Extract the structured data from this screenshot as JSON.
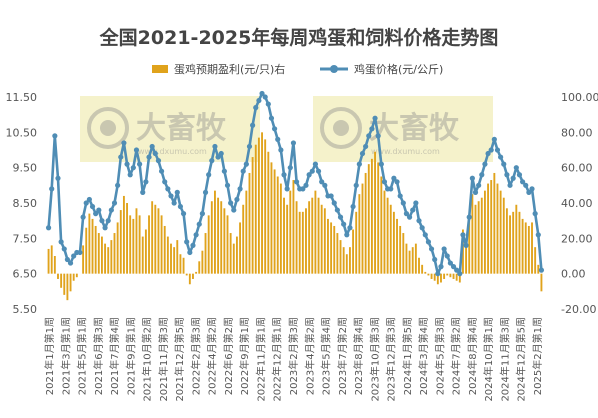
{
  "chart_data": {
    "type": "bar+line",
    "title": "全国2021-2025年每周鸡蛋和饲料价格走势图",
    "legend": {
      "placement": "top",
      "items": [
        {
          "label": "蛋鸡预期盈利(元/只)右",
          "marker": "bar"
        },
        {
          "label": "鸡蛋价格(元/公斤)",
          "marker": "line-dot"
        }
      ]
    },
    "left_axis": {
      "min": 5.5,
      "max": 11.5,
      "ticks": [
        "5.50",
        "6.50",
        "7.50",
        "8.50",
        "9.50",
        "10.50",
        "11.50"
      ]
    },
    "right_axis": {
      "min": -20,
      "max": 100,
      "ticks": [
        "-20.00",
        "0.00",
        "20.00",
        "40.00",
        "60.00",
        "80.00",
        "100.00"
      ]
    },
    "x_tick_labels": [
      "2021年1月第1周",
      "2021年3月第1周",
      "2021年5月第1周",
      "2021年6月第3周",
      "2021年7月第4周",
      "2021年9月第1周",
      "2021年10月第2周",
      "2021年11月第3周",
      "2021年12月第5周",
      "2022年2月第3周",
      "2022年4月第2周",
      "2022年6月第2周",
      "2022年9月第1周",
      "2022年11月第1周",
      "2022年12月第1周",
      "2023年2月第3周",
      "2023年4月第2周",
      "2023年5月第4周",
      "2023年7月第2周",
      "2023年8月第4周",
      "2023年10月第3周",
      "2023年12月第3周",
      "2024年1月第5周",
      "2024年3月第4周",
      "2024年5月第3周",
      "2024年7月第2周",
      "2024年8月第4周",
      "2024年10月第1周",
      "2024年11月第3周",
      "2024年12月第5周",
      "2025年2月第1周"
    ],
    "series": [
      {
        "name": "鸡蛋价格(元/公斤)",
        "axis": "left",
        "color": "#4f8db5",
        "values": [
          7.8,
          8.9,
          10.4,
          9.2,
          7.4,
          7.2,
          6.9,
          6.8,
          7.0,
          7.1,
          7.1,
          8.1,
          8.5,
          8.6,
          8.4,
          8.2,
          8.3,
          8.0,
          7.8,
          8.0,
          8.3,
          8.5,
          9.0,
          9.8,
          10.2,
          9.6,
          9.3,
          9.5,
          10.0,
          9.6,
          8.8,
          9.1,
          9.8,
          10.1,
          9.9,
          9.7,
          9.4,
          9.1,
          8.9,
          8.7,
          8.5,
          8.8,
          8.4,
          8.2,
          7.4,
          7.1,
          7.3,
          7.6,
          7.9,
          8.2,
          8.8,
          9.3,
          9.7,
          10.1,
          9.8,
          9.9,
          9.4,
          9.0,
          8.5,
          8.3,
          8.6,
          8.9,
          9.4,
          9.6,
          10.1,
          10.7,
          11.2,
          11.4,
          11.6,
          11.5,
          11.3,
          10.9,
          10.6,
          10.3,
          10.0,
          9.3,
          8.9,
          9.5,
          10.2,
          9.1,
          8.9,
          8.9,
          9.0,
          9.3,
          9.4,
          9.6,
          9.4,
          9.1,
          9.0,
          8.7,
          8.7,
          8.5,
          8.3,
          8.1,
          7.9,
          7.6,
          7.8,
          8.4,
          9.0,
          9.6,
          9.9,
          10.1,
          10.4,
          10.6,
          10.9,
          10.4,
          9.6,
          9.1,
          8.9,
          8.9,
          9.2,
          9.1,
          8.7,
          8.5,
          8.2,
          8.1,
          8.3,
          8.5,
          8.0,
          7.8,
          7.6,
          7.4,
          7.2,
          6.9,
          6.5,
          6.7,
          7.2,
          7.0,
          6.8,
          6.7,
          6.6,
          6.5,
          7.6,
          7.3,
          8.1,
          9.2,
          8.8,
          9.0,
          9.3,
          9.6,
          9.9,
          10.0,
          10.3,
          10.0,
          9.8,
          9.6,
          9.3,
          9.0,
          9.2,
          9.5,
          9.3,
          9.1,
          9.0,
          8.8,
          8.9,
          8.2,
          7.6,
          6.6
        ]
      },
      {
        "name": "蛋鸡预期盈利(元/只)右",
        "axis": "right",
        "color": "#e0a31c",
        "values": [
          14,
          16,
          10,
          -3,
          -8,
          -12,
          -15,
          -10,
          -4,
          -2,
          0,
          16,
          26,
          34,
          31,
          27,
          23,
          21,
          17,
          15,
          19,
          23,
          29,
          36,
          44,
          40,
          33,
          31,
          37,
          33,
          21,
          25,
          33,
          41,
          39,
          37,
          33,
          27,
          21,
          17,
          15,
          19,
          11,
          9,
          -1,
          -6,
          -3,
          1,
          7,
          13,
          23,
          33,
          41,
          47,
          43,
          41,
          37,
          33,
          23,
          17,
          21,
          29,
          39,
          47,
          57,
          66,
          73,
          77,
          80,
          76,
          69,
          63,
          59,
          55,
          51,
          43,
          39,
          47,
          53,
          41,
          35,
          35,
          37,
          41,
          43,
          47,
          43,
          39,
          37,
          31,
          29,
          27,
          23,
          19,
          15,
          11,
          15,
          25,
          35,
          45,
          51,
          57,
          62,
          65,
          69,
          63,
          55,
          47,
          43,
          39,
          35,
          31,
          27,
          23,
          17,
          13,
          15,
          17,
          9,
          5,
          1,
          -1,
          -3,
          -4,
          -6,
          -5,
          -3,
          -1,
          -2,
          -3,
          -4,
          -5,
          25,
          19,
          31,
          45,
          39,
          41,
          43,
          47,
          51,
          53,
          57,
          51,
          47,
          43,
          37,
          33,
          35,
          39,
          35,
          31,
          29,
          27,
          29,
          15,
          5,
          -10
        ]
      }
    ],
    "watermark": {
      "brand": "大畜牧",
      "url": "www.dxumu.com"
    }
  }
}
